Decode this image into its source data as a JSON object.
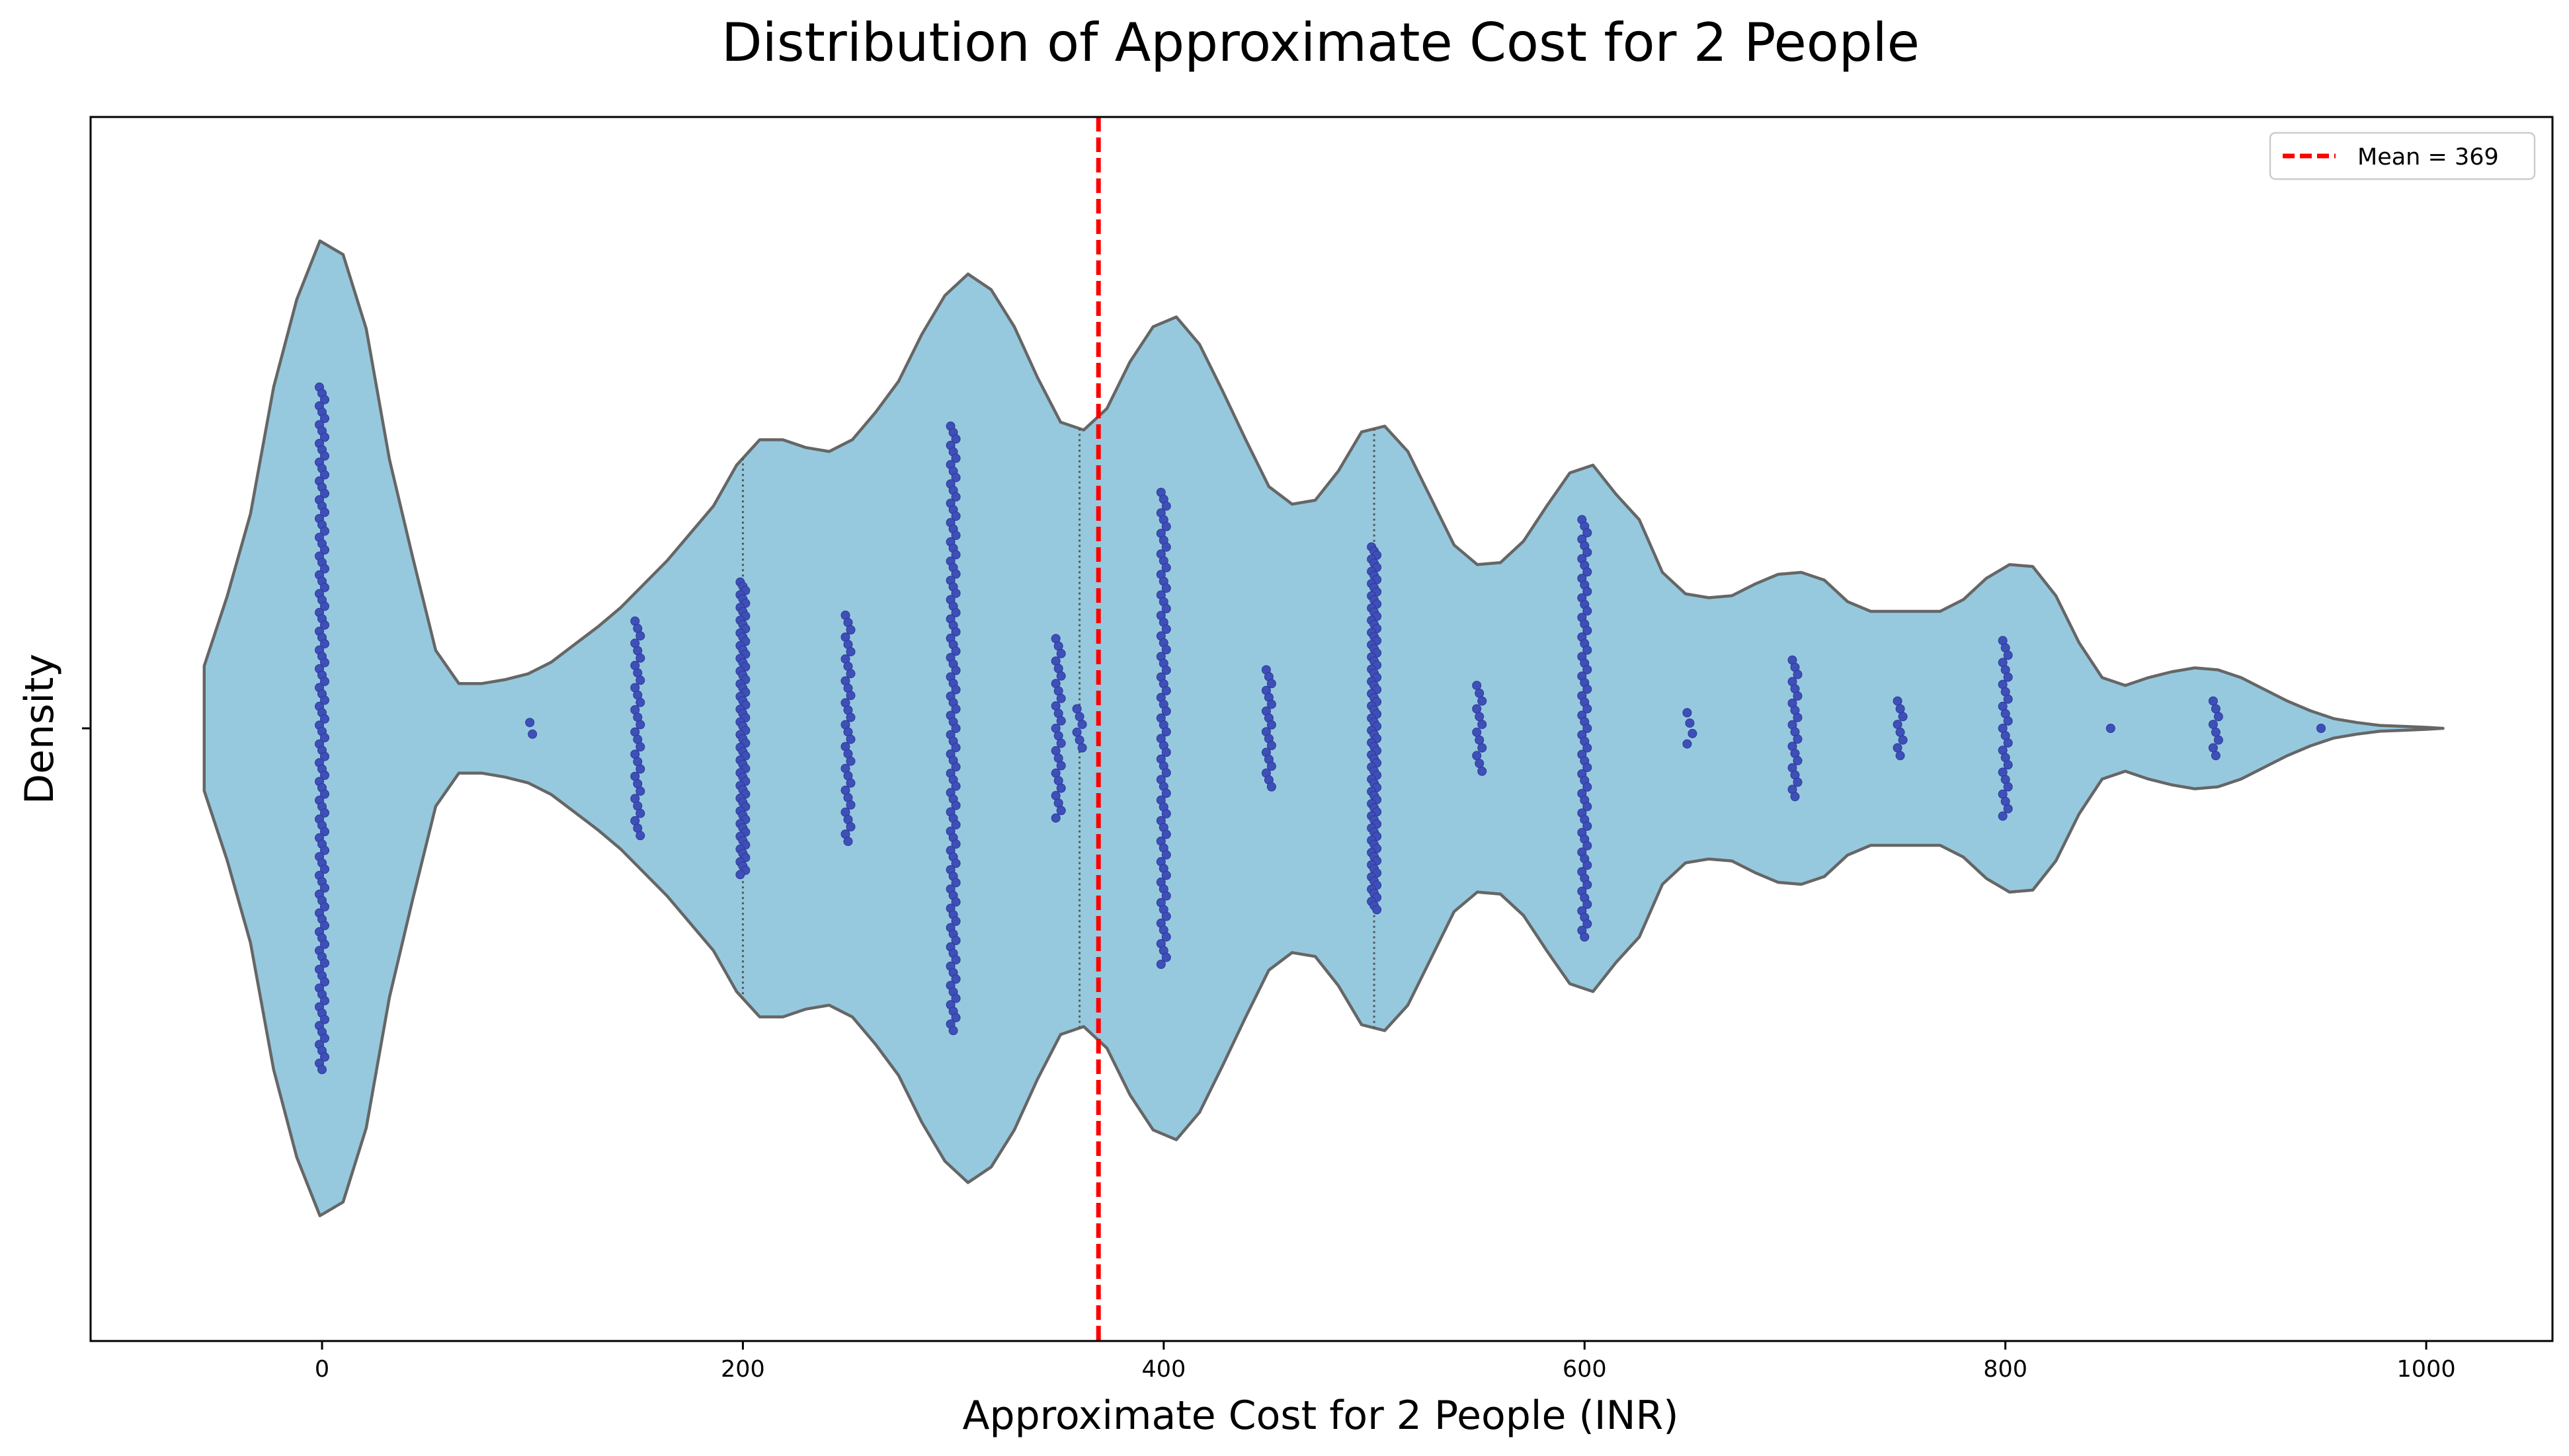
{
  "chart_data": {
    "type": "violin",
    "title": "Distribution of Approximate Cost for 2 People",
    "xlabel": "Approximate Cost for 2 People (INR)",
    "ylabel": "Density",
    "xlim": [
      -110,
      1060
    ],
    "xticks": [
      0,
      200,
      400,
      600,
      800,
      1000
    ],
    "grid": false,
    "legend": {
      "placement": "top-right",
      "entries": [
        {
          "label": "Mean = 369",
          "color": "#ff0000",
          "style": "dashed"
        }
      ]
    },
    "mean": 369,
    "quartiles": [
      200,
      360,
      500
    ],
    "colors": {
      "violin_fill": "#96c9de",
      "violin_edge": "#666666",
      "points": "#3f4fb8",
      "mean_line": "#ff0000"
    },
    "violin_outline": {
      "x": [
        -56,
        -45,
        -34,
        -23,
        -12,
        -1,
        10,
        21,
        32,
        43,
        54,
        65,
        76,
        87,
        98,
        109,
        120,
        131,
        142,
        153,
        164,
        175,
        186,
        197,
        208,
        219,
        230,
        241,
        252,
        263,
        274,
        285,
        296,
        307,
        318,
        329,
        340,
        351,
        362,
        373,
        384,
        395,
        406,
        417,
        428,
        439,
        450,
        461,
        472,
        483,
        494,
        505,
        516,
        527,
        538,
        549,
        560,
        571,
        582,
        593,
        604,
        615,
        626,
        637,
        648,
        659,
        670,
        681,
        692,
        703,
        714,
        725,
        736,
        747,
        758,
        769,
        780,
        791,
        802,
        813,
        824,
        835,
        846,
        857,
        868,
        879,
        890,
        901,
        912,
        923,
        934,
        945,
        956,
        967,
        978,
        989,
        1000,
        1008
      ],
      "half_width": [
        0.32,
        0.68,
        1.1,
        1.75,
        2.2,
        2.5,
        2.43,
        2.05,
        1.38,
        0.88,
        0.4,
        0.23,
        0.23,
        0.25,
        0.28,
        0.34,
        0.43,
        0.52,
        0.62,
        0.74,
        0.86,
        1.0,
        1.14,
        1.35,
        1.48,
        1.48,
        1.44,
        1.42,
        1.48,
        1.62,
        1.78,
        2.02,
        2.22,
        2.33,
        2.25,
        2.06,
        1.8,
        1.57,
        1.53,
        1.64,
        1.88,
        2.06,
        2.11,
        1.97,
        1.73,
        1.48,
        1.24,
        1.15,
        1.17,
        1.32,
        1.52,
        1.55,
        1.42,
        1.18,
        0.94,
        0.84,
        0.85,
        0.96,
        1.14,
        1.31,
        1.35,
        1.2,
        1.07,
        0.8,
        0.69,
        0.67,
        0.68,
        0.74,
        0.79,
        0.8,
        0.76,
        0.65,
        0.6,
        0.6,
        0.6,
        0.6,
        0.66,
        0.77,
        0.84,
        0.83,
        0.68,
        0.44,
        0.26,
        0.22,
        0.26,
        0.29,
        0.31,
        0.3,
        0.26,
        0.2,
        0.14,
        0.09,
        0.05,
        0.03,
        0.015,
        0.01,
        0.005,
        0
      ]
    },
    "swarm": [
      {
        "x": 0,
        "count": 110,
        "spread": 1.75
      },
      {
        "x": 100,
        "count": 2,
        "spread": 0.03
      },
      {
        "x": 150,
        "count": 30,
        "spread": 0.55
      },
      {
        "x": 200,
        "count": 70,
        "spread": 0.75
      },
      {
        "x": 250,
        "count": 32,
        "spread": 0.58
      },
      {
        "x": 300,
        "count": 95,
        "spread": 1.55
      },
      {
        "x": 350,
        "count": 25,
        "spread": 0.46
      },
      {
        "x": 360,
        "count": 6,
        "spread": 0.1
      },
      {
        "x": 400,
        "count": 70,
        "spread": 1.21
      },
      {
        "x": 450,
        "count": 18,
        "spread": 0.3
      },
      {
        "x": 500,
        "count": 90,
        "spread": 0.93
      },
      {
        "x": 550,
        "count": 12,
        "spread": 0.22
      },
      {
        "x": 600,
        "count": 65,
        "spread": 1.07
      },
      {
        "x": 650,
        "count": 4,
        "spread": 0.08
      },
      {
        "x": 700,
        "count": 20,
        "spread": 0.35
      },
      {
        "x": 750,
        "count": 8,
        "spread": 0.14
      },
      {
        "x": 800,
        "count": 25,
        "spread": 0.45
      },
      {
        "x": 850,
        "count": 1,
        "spread": 0
      },
      {
        "x": 900,
        "count": 8,
        "spread": 0.14
      },
      {
        "x": 950,
        "count": 1,
        "spread": 0
      }
    ]
  }
}
